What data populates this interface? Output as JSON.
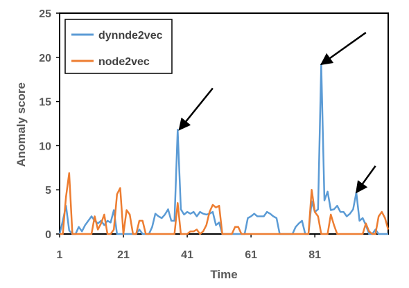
{
  "chart_data": {
    "type": "line",
    "title": "",
    "xlabel": "Time",
    "ylabel": "Anomaly score",
    "xlim": [
      1,
      104
    ],
    "ylim": [
      0,
      25
    ],
    "x_ticks": [
      1,
      21,
      41,
      61,
      81
    ],
    "y_ticks": [
      0,
      5,
      10,
      15,
      20,
      25
    ],
    "grid": false,
    "legend_position": "top-left",
    "series": [
      {
        "name": "dynnde2vec",
        "color": "#5B9BD5",
        "x": [
          1,
          2,
          3,
          4,
          5,
          6,
          7,
          8,
          9,
          10,
          11,
          12,
          13,
          14,
          15,
          16,
          17,
          18,
          19,
          20,
          21,
          22,
          23,
          24,
          25,
          26,
          27,
          28,
          29,
          30,
          31,
          32,
          33,
          34,
          35,
          36,
          37,
          38,
          39,
          40,
          41,
          42,
          43,
          44,
          45,
          46,
          47,
          48,
          49,
          50,
          51,
          52,
          53,
          54,
          55,
          56,
          57,
          58,
          59,
          60,
          61,
          62,
          63,
          64,
          65,
          66,
          67,
          68,
          69,
          70,
          71,
          72,
          73,
          74,
          75,
          76,
          77,
          78,
          79,
          80,
          81,
          82,
          83,
          84,
          85,
          86,
          87,
          88,
          89,
          90,
          91,
          92,
          93,
          94,
          95,
          96,
          97,
          98,
          99,
          100,
          101,
          102,
          103,
          104
        ],
        "values": [
          0,
          1.5,
          3.2,
          0.4,
          0,
          0,
          0.8,
          0.3,
          1.0,
          1.5,
          2.0,
          1.5,
          1.2,
          1.5,
          1.0,
          1.5,
          1.3,
          2.7,
          0,
          0,
          0,
          0,
          0,
          0,
          0,
          0.5,
          0,
          0,
          0,
          0.8,
          2.3,
          2.0,
          1.8,
          2.2,
          2.8,
          1.5,
          1.5,
          11.8,
          2.8,
          2.2,
          2.5,
          2.3,
          2.5,
          2.0,
          2.5,
          2.3,
          2.2,
          2.3,
          2.5,
          1.0,
          1.3,
          0,
          0,
          0,
          0,
          0,
          0,
          0,
          0,
          1.8,
          2.0,
          2.3,
          2.0,
          2.0,
          2.0,
          2.5,
          2.3,
          2.0,
          1.8,
          0,
          0,
          0,
          0,
          0,
          0.8,
          1.2,
          1.5,
          0,
          0,
          3.7,
          2.5,
          2.8,
          19.2,
          3.8,
          4.8,
          2.7,
          2.8,
          3.2,
          2.5,
          2.5,
          2.0,
          2.3,
          2.8,
          4.7,
          1.5,
          1.8,
          1.0,
          0,
          0,
          0.5,
          0,
          0,
          0,
          0
        ]
      },
      {
        "name": "node2vec",
        "color": "#ED7D31",
        "x": [
          1,
          2,
          3,
          4,
          5,
          6,
          7,
          8,
          9,
          10,
          11,
          12,
          13,
          14,
          15,
          16,
          17,
          18,
          19,
          20,
          21,
          22,
          23,
          24,
          25,
          26,
          27,
          28,
          29,
          30,
          31,
          32,
          33,
          34,
          35,
          36,
          37,
          38,
          39,
          40,
          41,
          42,
          43,
          44,
          45,
          46,
          47,
          48,
          49,
          50,
          51,
          52,
          53,
          54,
          55,
          56,
          57,
          58,
          59,
          60,
          61,
          62,
          63,
          64,
          65,
          66,
          67,
          68,
          69,
          70,
          71,
          72,
          73,
          74,
          75,
          76,
          77,
          78,
          79,
          80,
          81,
          82,
          83,
          84,
          85,
          86,
          87,
          88,
          89,
          90,
          91,
          92,
          93,
          94,
          95,
          96,
          97,
          98,
          99,
          100,
          101,
          102,
          103,
          104
        ],
        "values": [
          0,
          0,
          4.2,
          6.9,
          0,
          0,
          0,
          0,
          0,
          0,
          0,
          2.0,
          0.5,
          1.2,
          2.2,
          0,
          0,
          0.5,
          4.5,
          5.2,
          0,
          2.7,
          2.2,
          0,
          0,
          1.5,
          1.5,
          0,
          0,
          0,
          0,
          0,
          0,
          0,
          0,
          0,
          0,
          3.5,
          0,
          0,
          0,
          0.3,
          0.3,
          0.5,
          0,
          0.3,
          1.0,
          2.5,
          3.3,
          3.0,
          3.2,
          0,
          0,
          0,
          0,
          0.8,
          0.8,
          0,
          0,
          0,
          0,
          0,
          0,
          0,
          0,
          0,
          0,
          0,
          0,
          0,
          0,
          0,
          0,
          0,
          0,
          0,
          0,
          0,
          0,
          5.0,
          2.5,
          2.0,
          0,
          0,
          0,
          2.2,
          1.0,
          0,
          0,
          0,
          0,
          0,
          0,
          0,
          0,
          0,
          1.2,
          0.3,
          0,
          0,
          2.0,
          2.5,
          1.8,
          0.5
        ]
      }
    ],
    "annotations": [
      {
        "type": "arrow",
        "from": [
          49,
          16.5
        ],
        "to": [
          38.5,
          11.8
        ]
      },
      {
        "type": "arrow",
        "from": [
          97,
          22.8
        ],
        "to": [
          83,
          19.2
        ]
      },
      {
        "type": "arrow",
        "from": [
          100,
          7.7
        ],
        "to": [
          94,
          4.7
        ]
      }
    ]
  }
}
